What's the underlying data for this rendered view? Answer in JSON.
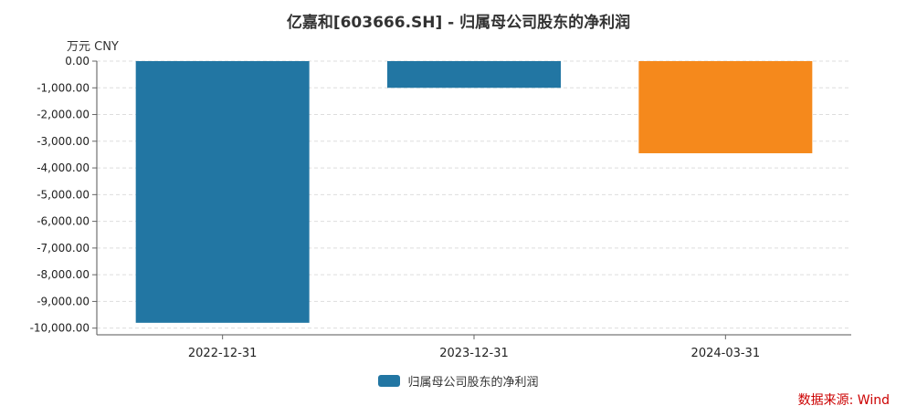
{
  "chart_data": {
    "type": "bar",
    "title": "亿嘉和[603666.SH] - 归属母公司股东的净利润",
    "unit_label": "万元  CNY",
    "categories": [
      "2022-12-31",
      "2023-12-31",
      "2024-03-31"
    ],
    "series": [
      {
        "name": "归属母公司股东的净利润",
        "values": [
          -9800,
          -1000,
          -3450
        ],
        "colors": [
          "#2276a3",
          "#2276a3",
          "#f5891c"
        ]
      }
    ],
    "ylim": [
      -10250,
      0
    ],
    "yticks": [
      0,
      -1000,
      -2000,
      -3000,
      -4000,
      -5000,
      -6000,
      -7000,
      -8000,
      -9000,
      -10000
    ],
    "ytick_labels": [
      "0.00",
      "-1,000.00",
      "-2,000.00",
      "-3,000.00",
      "-4,000.00",
      "-5,000.00",
      "-6,000.00",
      "-7,000.00",
      "-8,000.00",
      "-9,000.00",
      "-10,000.00"
    ],
    "grid": true,
    "legend_position": "bottom-center"
  },
  "legend_color": "#2276a3",
  "source_note": "数据来源: Wind"
}
